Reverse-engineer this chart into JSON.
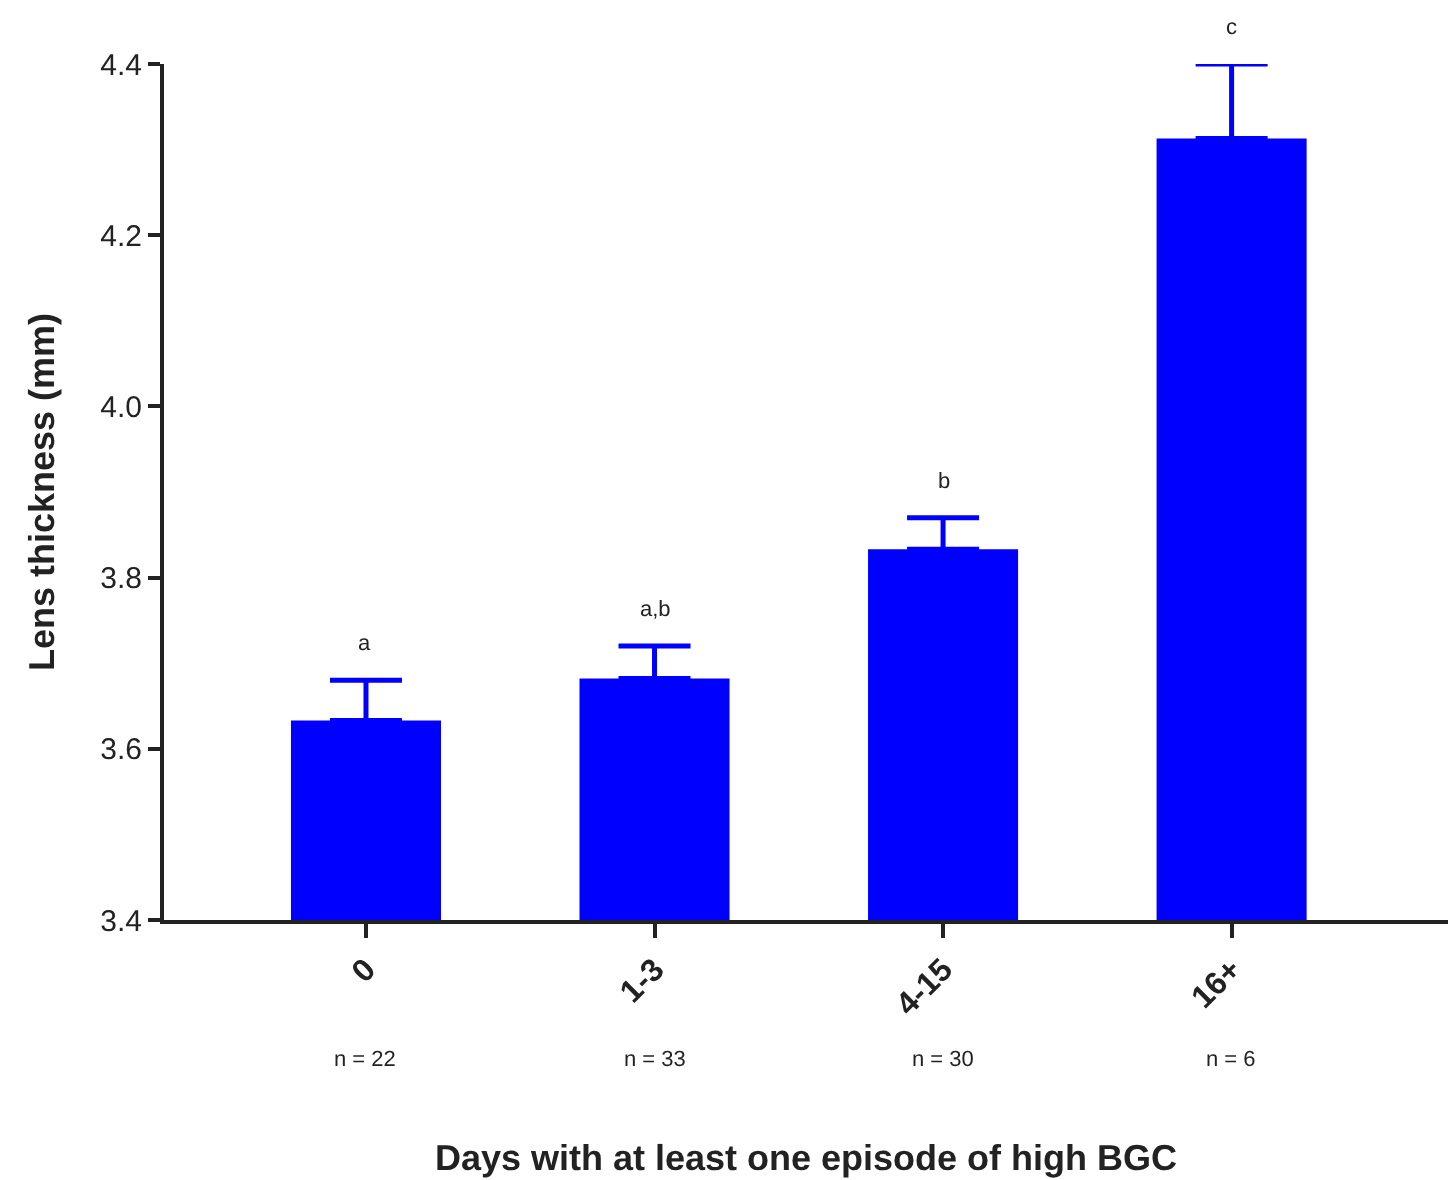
{
  "chart_data": {
    "type": "bar",
    "xlabel": "Days with at least one episode of high BGC",
    "ylabel": "Lens thickness (mm)",
    "categories": [
      "0",
      "1-3",
      "4-15",
      "16+"
    ],
    "series": [
      {
        "color": "#0000ff",
        "values": [
          3.633,
          3.682,
          3.833,
          4.313
        ],
        "errors": [
          [
            3.633,
            3.68
          ],
          [
            3.682,
            3.72
          ],
          [
            3.833,
            3.87
          ],
          [
            4.313,
            4.4
          ]
        ]
      }
    ],
    "ylim": [
      3.4,
      4.4
    ],
    "yticks": [
      {
        "value": 3.4,
        "label": "3.4"
      },
      {
        "value": 3.6,
        "label": "3.6"
      },
      {
        "value": 3.8,
        "label": "3.8"
      },
      {
        "value": 4.0,
        "label": "4.0"
      },
      {
        "value": 4.2,
        "label": "4.2"
      },
      {
        "value": 4.4,
        "label": "4.4"
      }
    ],
    "annotations": [
      "a",
      "a,b",
      "b",
      "c",
      "n = 22",
      "n = 33",
      "n = 30",
      "n = 6"
    ]
  }
}
